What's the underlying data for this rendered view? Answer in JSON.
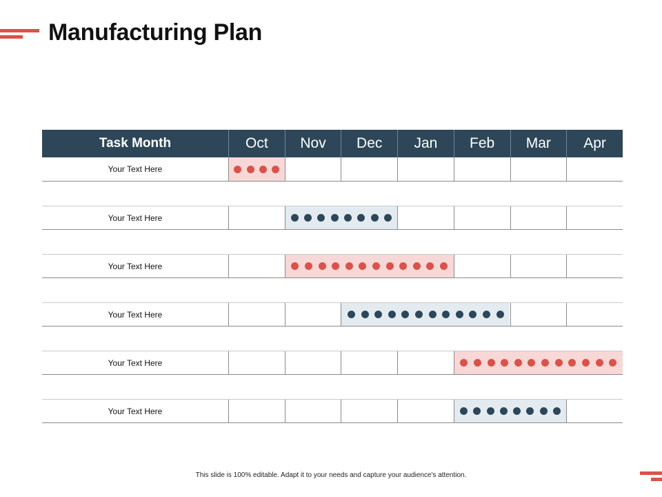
{
  "title": "Manufacturing Plan",
  "header": {
    "task_label": "Task Month"
  },
  "months": [
    "Oct",
    "Nov",
    "Dec",
    "Jan",
    "Feb",
    "Mar",
    "Apr"
  ],
  "colors": {
    "header_bg": "#2d4759",
    "accent": "#d9534a",
    "red_dot": "#d9534a",
    "red_fill": "#f8d7d7",
    "navy_dot": "#2d4759",
    "blue_fill": "#e3ebf1"
  },
  "tasks": [
    {
      "label": "Your Text Here",
      "start_month": "Oct",
      "end_month": "Oct",
      "color": "red",
      "dots": 4
    },
    {
      "label": "Your Text Here",
      "start_month": "Nov",
      "end_month": "Dec",
      "color": "navy",
      "dots": 8
    },
    {
      "label": "Your Text Here",
      "start_month": "Nov",
      "end_month": "Jan",
      "color": "red",
      "dots": 12
    },
    {
      "label": "Your Text Here",
      "start_month": "Dec",
      "end_month": "Feb",
      "color": "navy",
      "dots": 12
    },
    {
      "label": "Your Text Here",
      "start_month": "Feb",
      "end_month": "Apr",
      "color": "red",
      "dots": 12
    },
    {
      "label": "Your Text Here",
      "start_month": "Feb",
      "end_month": "Mar",
      "color": "navy",
      "dots": 8
    }
  ],
  "footer": "This slide is 100% editable.  Adapt it to your needs and capture your audience's attention."
}
